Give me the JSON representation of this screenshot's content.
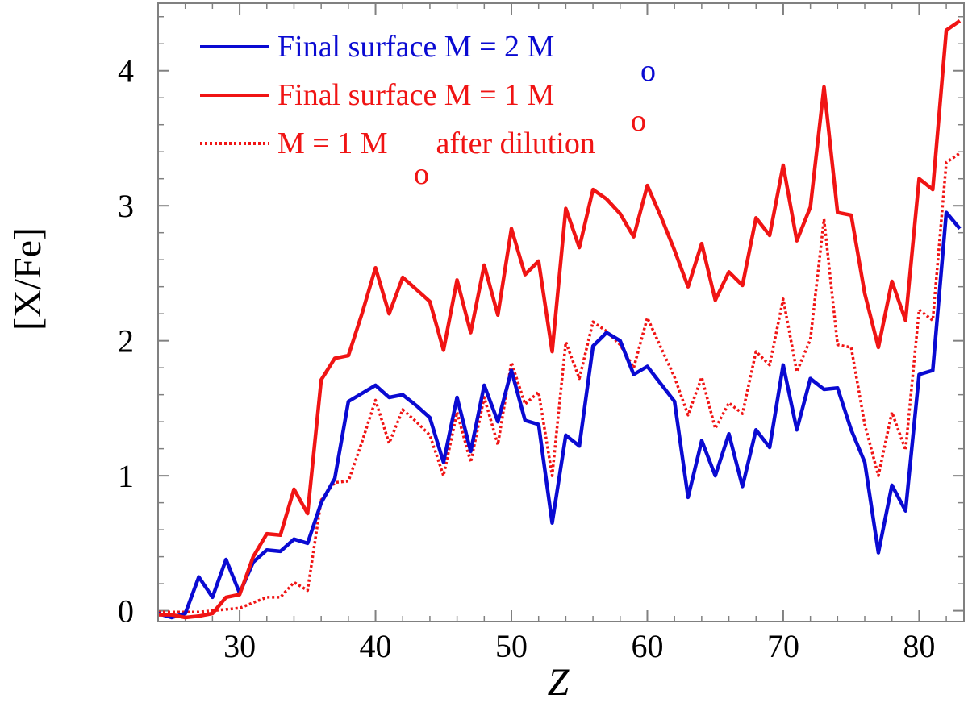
{
  "chart_data": {
    "type": "line",
    "xlabel": "Z",
    "ylabel": "[X/Fe]",
    "xlim": [
      24,
      83.3
    ],
    "ylim": [
      -0.08,
      4.5
    ],
    "xticks": [
      30,
      40,
      50,
      60,
      70,
      80
    ],
    "yticks": [
      0,
      1,
      2,
      3,
      4
    ],
    "x_tick_labels": [
      "30",
      "40",
      "50",
      "60",
      "70",
      "80"
    ],
    "y_tick_labels": [
      "0",
      "1",
      "2",
      "3",
      "4"
    ],
    "legend_position": "top-left",
    "x": [
      24,
      25,
      26,
      27,
      28,
      29,
      30,
      31,
      32,
      33,
      34,
      35,
      36,
      37,
      38,
      39,
      40,
      41,
      42,
      43,
      44,
      45,
      46,
      47,
      48,
      49,
      50,
      51,
      52,
      53,
      54,
      55,
      56,
      57,
      58,
      59,
      60,
      61,
      62,
      63,
      64,
      65,
      66,
      67,
      68,
      69,
      70,
      71,
      72,
      73,
      74,
      75,
      76,
      77,
      78,
      79,
      80,
      81,
      82,
      83
    ],
    "series": [
      {
        "name": "Final surface M = 2 M",
        "legend_text": "Final surface M = 2 M",
        "legend_superscript": "o",
        "color": "#0a0ad2",
        "style": "solid",
        "values": [
          -0.02,
          -0.05,
          -0.02,
          0.25,
          0.1,
          0.38,
          0.13,
          0.36,
          0.45,
          0.44,
          0.53,
          0.5,
          0.8,
          0.98,
          1.55,
          1.61,
          1.67,
          1.58,
          1.6,
          1.52,
          1.43,
          1.1,
          1.58,
          1.18,
          1.67,
          1.4,
          1.78,
          1.41,
          1.38,
          0.65,
          1.3,
          1.22,
          1.96,
          2.06,
          2.0,
          1.75,
          1.81,
          1.68,
          1.55,
          0.84,
          1.26,
          1.0,
          1.31,
          0.92,
          1.34,
          1.21,
          1.82,
          1.34,
          1.72,
          1.64,
          1.65,
          1.34,
          1.1,
          0.43,
          0.93,
          0.74,
          1.75,
          1.78,
          2.95,
          2.83
        ]
      },
      {
        "name": "Final surface M = 1 M",
        "legend_text": "Final surface M = 1 M",
        "legend_superscript": "o",
        "color": "#f01414",
        "style": "solid",
        "values": [
          -0.03,
          -0.03,
          -0.05,
          -0.04,
          -0.02,
          0.1,
          0.12,
          0.4,
          0.57,
          0.56,
          0.9,
          0.72,
          1.71,
          1.87,
          1.89,
          2.2,
          2.54,
          2.2,
          2.47,
          2.38,
          2.29,
          1.93,
          2.45,
          2.06,
          2.56,
          2.19,
          2.83,
          2.49,
          2.59,
          1.92,
          2.98,
          2.69,
          3.12,
          3.05,
          2.94,
          2.77,
          3.15,
          2.92,
          2.67,
          2.4,
          2.72,
          2.3,
          2.51,
          2.41,
          2.91,
          2.78,
          3.3,
          2.74,
          2.99,
          3.88,
          2.95,
          2.93,
          2.35,
          1.95,
          2.44,
          2.15,
          3.2,
          3.12,
          4.3,
          4.37
        ]
      },
      {
        "name": "M = 1 M after dilution",
        "legend_text": "M = 1 M",
        "legend_subscript": "o",
        "legend_text_after": " after dilution",
        "color": "#f01414",
        "style": "dotted",
        "values": [
          -0.01,
          -0.01,
          -0.01,
          -0.01,
          0.0,
          0.01,
          0.02,
          0.06,
          0.1,
          0.1,
          0.21,
          0.15,
          0.82,
          0.95,
          0.96,
          1.25,
          1.56,
          1.24,
          1.49,
          1.4,
          1.3,
          1.0,
          1.47,
          1.1,
          1.58,
          1.23,
          1.84,
          1.53,
          1.62,
          1.0,
          1.99,
          1.72,
          2.14,
          2.07,
          1.97,
          1.8,
          2.17,
          1.95,
          1.73,
          1.45,
          1.73,
          1.35,
          1.54,
          1.46,
          1.92,
          1.82,
          2.31,
          1.77,
          2.01,
          2.9,
          1.97,
          1.95,
          1.38,
          1.0,
          1.47,
          1.19,
          2.23,
          2.15,
          3.32,
          3.39
        ]
      }
    ]
  }
}
